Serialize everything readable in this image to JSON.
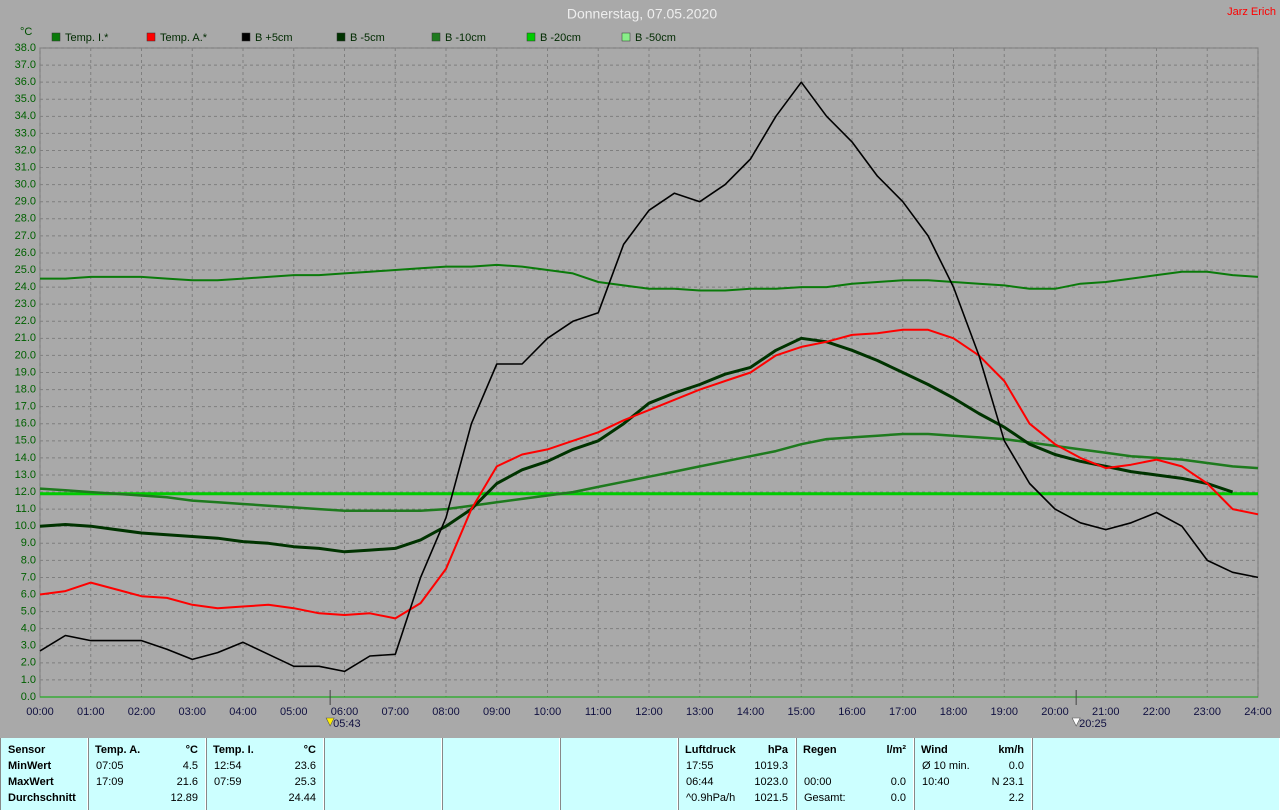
{
  "chart_data": {
    "type": "line",
    "title": "Donnerstag, 07.05.2020",
    "author": "Jarz Erich",
    "y_label": "°C",
    "grid": true,
    "x": [
      0,
      0.5,
      1,
      1.5,
      2,
      2.5,
      3,
      3.5,
      4,
      4.5,
      5,
      5.5,
      6,
      6.5,
      7,
      7.5,
      8,
      8.5,
      9,
      9.5,
      10,
      10.5,
      11,
      11.5,
      12,
      12.5,
      13,
      13.5,
      14,
      14.5,
      15,
      15.5,
      16,
      16.5,
      17,
      17.5,
      18,
      18.5,
      19,
      19.5,
      20,
      20.5,
      21,
      21.5,
      22,
      22.5,
      23,
      23.5,
      24
    ],
    "xlim": [
      0,
      24
    ],
    "xticks": [
      {
        "value": 0,
        "label": "00:00"
      },
      {
        "value": 1,
        "label": "01:00"
      },
      {
        "value": 2,
        "label": "02:00"
      },
      {
        "value": 3,
        "label": "03:00"
      },
      {
        "value": 4,
        "label": "04:00"
      },
      {
        "value": 5,
        "label": "05:00"
      },
      {
        "value": 6,
        "label": "06:00"
      },
      {
        "value": 7,
        "label": "07:00"
      },
      {
        "value": 8,
        "label": "08:00"
      },
      {
        "value": 9,
        "label": "09:00"
      },
      {
        "value": 10,
        "label": "10:00"
      },
      {
        "value": 11,
        "label": "11:00"
      },
      {
        "value": 12,
        "label": "12:00"
      },
      {
        "value": 13,
        "label": "13:00"
      },
      {
        "value": 14,
        "label": "14:00"
      },
      {
        "value": 15,
        "label": "15:00"
      },
      {
        "value": 16,
        "label": "16:00"
      },
      {
        "value": 17,
        "label": "17:00"
      },
      {
        "value": 18,
        "label": "18:00"
      },
      {
        "value": 19,
        "label": "19:00"
      },
      {
        "value": 20,
        "label": "20:00"
      },
      {
        "value": 21,
        "label": "21:00"
      },
      {
        "value": 22,
        "label": "22:00"
      },
      {
        "value": 23,
        "label": "23:00"
      },
      {
        "value": 24,
        "label": "24:00"
      }
    ],
    "ylim": [
      0,
      38
    ],
    "yticks": [
      {
        "value": 0,
        "label": "0.0"
      },
      {
        "value": 1,
        "label": "1.0"
      },
      {
        "value": 2,
        "label": "2.0"
      },
      {
        "value": 3,
        "label": "3.0"
      },
      {
        "value": 4,
        "label": "4.0"
      },
      {
        "value": 5,
        "label": "5.0"
      },
      {
        "value": 6,
        "label": "6.0"
      },
      {
        "value": 7,
        "label": "7.0"
      },
      {
        "value": 8,
        "label": "8.0"
      },
      {
        "value": 9,
        "label": "9.0"
      },
      {
        "value": 10,
        "label": "10.0"
      },
      {
        "value": 11,
        "label": "11.0"
      },
      {
        "value": 12,
        "label": "12.0"
      },
      {
        "value": 13,
        "label": "13.0"
      },
      {
        "value": 14,
        "label": "14.0"
      },
      {
        "value": 15,
        "label": "15.0"
      },
      {
        "value": 16,
        "label": "16.0"
      },
      {
        "value": 17,
        "label": "17.0"
      },
      {
        "value": 18,
        "label": "18.0"
      },
      {
        "value": 19,
        "label": "19.0"
      },
      {
        "value": 20,
        "label": "20.0"
      },
      {
        "value": 21,
        "label": "21.0"
      },
      {
        "value": 22,
        "label": "22.0"
      },
      {
        "value": 23,
        "label": "23.0"
      },
      {
        "value": 24,
        "label": "24.0"
      },
      {
        "value": 25,
        "label": "25.0"
      },
      {
        "value": 26,
        "label": "26.0"
      },
      {
        "value": 27,
        "label": "27.0"
      },
      {
        "value": 28,
        "label": "28.0"
      },
      {
        "value": 29,
        "label": "29.0"
      },
      {
        "value": 30,
        "label": "30.0"
      },
      {
        "value": 31,
        "label": "31.0"
      },
      {
        "value": 32,
        "label": "32.0"
      },
      {
        "value": 33,
        "label": "33.0"
      },
      {
        "value": 34,
        "label": "34.0"
      },
      {
        "value": 35,
        "label": "35.0"
      },
      {
        "value": 36,
        "label": "36.0"
      },
      {
        "value": 37,
        "label": "37.0"
      },
      {
        "value": 38,
        "label": "38.0"
      }
    ],
    "series": [
      {
        "name": "Temp. I.*",
        "color": "#0a7a0a",
        "values": [
          24.5,
          24.5,
          24.6,
          24.6,
          24.6,
          24.5,
          24.4,
          24.4,
          24.5,
          24.6,
          24.7,
          24.7,
          24.8,
          24.9,
          25.0,
          25.1,
          25.2,
          25.2,
          25.3,
          25.2,
          25.0,
          24.8,
          24.3,
          24.1,
          23.9,
          23.9,
          23.8,
          23.8,
          23.9,
          23.9,
          24.0,
          24.0,
          24.2,
          24.3,
          24.4,
          24.4,
          24.3,
          24.2,
          24.1,
          23.9,
          23.9,
          24.2,
          24.3,
          24.5,
          24.7,
          24.9,
          24.9,
          24.7,
          24.6
        ]
      },
      {
        "name": "Temp. A.*",
        "color": "#ff0000",
        "values": [
          6.0,
          6.2,
          6.7,
          6.3,
          5.9,
          5.8,
          5.4,
          5.2,
          5.3,
          5.4,
          5.2,
          4.9,
          4.8,
          4.9,
          4.6,
          5.5,
          7.5,
          11.0,
          13.5,
          14.2,
          14.5,
          15.0,
          15.5,
          16.2,
          16.8,
          17.4,
          18.0,
          18.5,
          19.0,
          20.0,
          20.5,
          20.8,
          21.2,
          21.3,
          21.5,
          21.5,
          21.0,
          20.0,
          18.5,
          16.0,
          14.8,
          14.0,
          13.4,
          13.6,
          13.9,
          13.5,
          12.5,
          11.0,
          10.7
        ]
      },
      {
        "name": "B +5cm",
        "color": "#000000",
        "values": [
          2.7,
          3.6,
          3.3,
          3.3,
          3.3,
          2.8,
          2.2,
          2.6,
          3.2,
          2.5,
          1.8,
          1.8,
          1.5,
          2.4,
          2.5,
          7.0,
          10.5,
          16.0,
          19.5,
          19.5,
          21.0,
          22.0,
          22.5,
          26.5,
          28.5,
          29.5,
          29.0,
          30.0,
          31.5,
          34.0,
          36.0,
          34.0,
          32.5,
          30.5,
          29.0,
          27.0,
          24.0,
          20.0,
          15.0,
          12.5,
          11.0,
          10.2,
          9.8,
          10.2,
          10.8,
          10.0,
          8.0,
          7.3,
          7.0
        ]
      },
      {
        "name": "B -5cm",
        "color": "#003300",
        "values": [
          10.0,
          10.1,
          10.0,
          9.8,
          9.6,
          9.5,
          9.4,
          9.3,
          9.1,
          9.0,
          8.8,
          8.7,
          8.5,
          8.6,
          8.7,
          9.2,
          10.0,
          11.0,
          12.5,
          13.3,
          13.8,
          14.5,
          15.0,
          16.0,
          17.2,
          17.8,
          18.3,
          18.9,
          19.3,
          20.3,
          21.0,
          20.8,
          20.3,
          19.7,
          19.0,
          18.3,
          17.5,
          16.6,
          15.8,
          14.8,
          14.2,
          13.8,
          13.5,
          13.2,
          13.0,
          12.8,
          12.5,
          12.0,
          null
        ]
      },
      {
        "name": "B -10cm",
        "color": "#1e7a1e",
        "values": [
          12.2,
          12.1,
          12.0,
          11.9,
          11.8,
          11.7,
          11.5,
          11.4,
          11.3,
          11.2,
          11.1,
          11.0,
          10.9,
          10.9,
          10.9,
          10.9,
          11.0,
          11.2,
          11.4,
          11.6,
          11.8,
          12.0,
          12.3,
          12.6,
          12.9,
          13.2,
          13.5,
          13.8,
          14.1,
          14.4,
          14.8,
          15.1,
          15.2,
          15.3,
          15.4,
          15.4,
          15.3,
          15.2,
          15.1,
          14.9,
          14.7,
          14.5,
          14.3,
          14.1,
          14.0,
          13.9,
          13.7,
          13.5,
          13.4
        ]
      },
      {
        "name": "B -20cm",
        "color": "#00cc00",
        "values": [
          11.9,
          11.9,
          11.9,
          11.9,
          11.9,
          11.9,
          11.9,
          11.9,
          11.9,
          11.9,
          11.9,
          11.9,
          11.9,
          11.9,
          11.9,
          11.9,
          11.9,
          11.9,
          11.9,
          11.9,
          11.9,
          11.9,
          11.9,
          11.9,
          11.9,
          11.9,
          11.9,
          11.9,
          11.9,
          11.9,
          11.9,
          11.9,
          11.9,
          11.9,
          11.9,
          11.9,
          11.9,
          11.9,
          11.9,
          11.9,
          11.9,
          11.9,
          11.9,
          11.9,
          11.9,
          11.9,
          11.9,
          11.9,
          11.9
        ]
      },
      {
        "name": "B -50cm",
        "color": "#88ee88",
        "values": [
          null,
          null,
          null,
          null,
          null,
          null,
          null,
          null,
          null,
          null,
          null,
          null,
          null,
          null,
          null,
          null,
          null,
          null,
          null,
          null,
          null,
          null,
          null,
          null,
          null,
          null,
          null,
          null,
          null,
          null,
          null,
          null,
          null,
          null,
          null,
          null,
          null,
          null,
          null,
          null,
          null,
          null,
          null,
          null,
          null,
          null,
          null,
          null,
          null
        ]
      }
    ],
    "annotations": [
      {
        "x": 5.717,
        "label": "05:43"
      },
      {
        "x": 20.417,
        "label": "20:25"
      }
    ]
  },
  "table": {
    "row_labels": [
      "Sensor",
      "MinWert",
      "MaxWert",
      "Durchschnitt"
    ],
    "columns": [
      {
        "header": "Temp. A.",
        "unit": "°C",
        "rows": [
          [
            "07:05",
            "4.5"
          ],
          [
            "17:09",
            "21.6"
          ],
          [
            null,
            "12.89"
          ]
        ]
      },
      {
        "header": "Temp. I.",
        "unit": "°C",
        "rows": [
          [
            "12:54",
            "23.6"
          ],
          [
            "07:59",
            "25.3"
          ],
          [
            null,
            "24.44"
          ]
        ]
      },
      {
        "header": "Luftdruck",
        "unit": "hPa",
        "rows": [
          [
            "17:55",
            "1019.3"
          ],
          [
            "06:44",
            "1023.0"
          ],
          [
            "^0.9hPa/h",
            "1021.5"
          ]
        ]
      },
      {
        "header": "Regen",
        "unit": "l/m²",
        "rows": [
          [
            null,
            null
          ],
          [
            "00:00",
            "0.0"
          ],
          [
            "Gesamt:",
            "0.0"
          ]
        ]
      },
      {
        "header": "Wind",
        "unit": "km/h",
        "rows": [
          [
            "Ø 10 min.",
            "0.0"
          ],
          [
            "10:40",
            "N 23.1"
          ],
          [
            null,
            "2.2"
          ]
        ]
      }
    ]
  }
}
